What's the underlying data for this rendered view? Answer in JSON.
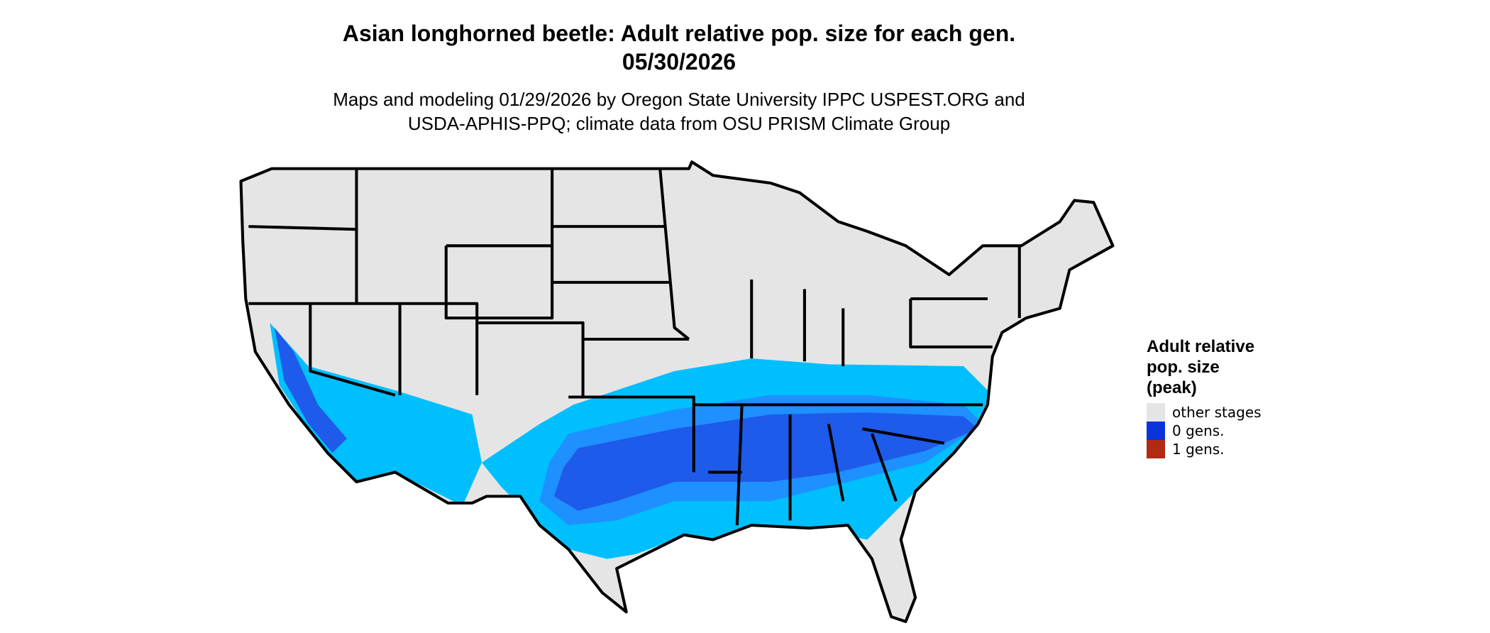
{
  "title": [
    "Asian longhorned beetle: Adult relative pop. size for each gen.",
    "05/30/2026"
  ],
  "subtitle": [
    "Maps and modeling 01/29/2026 by Oregon State University IPPC USPEST.ORG and",
    "USDA-APHIS-PPQ; climate data from OSU PRISM Climate Group"
  ],
  "legend": {
    "title": [
      "Adult relative",
      "pop. size",
      "(peak)"
    ],
    "items": [
      {
        "label": "other stages",
        "color": "#e5e5e5"
      },
      {
        "label": "0 gens.",
        "color": "#0a33d9"
      },
      {
        "label": "1 gens.",
        "color": "#b22a14"
      }
    ]
  }
}
